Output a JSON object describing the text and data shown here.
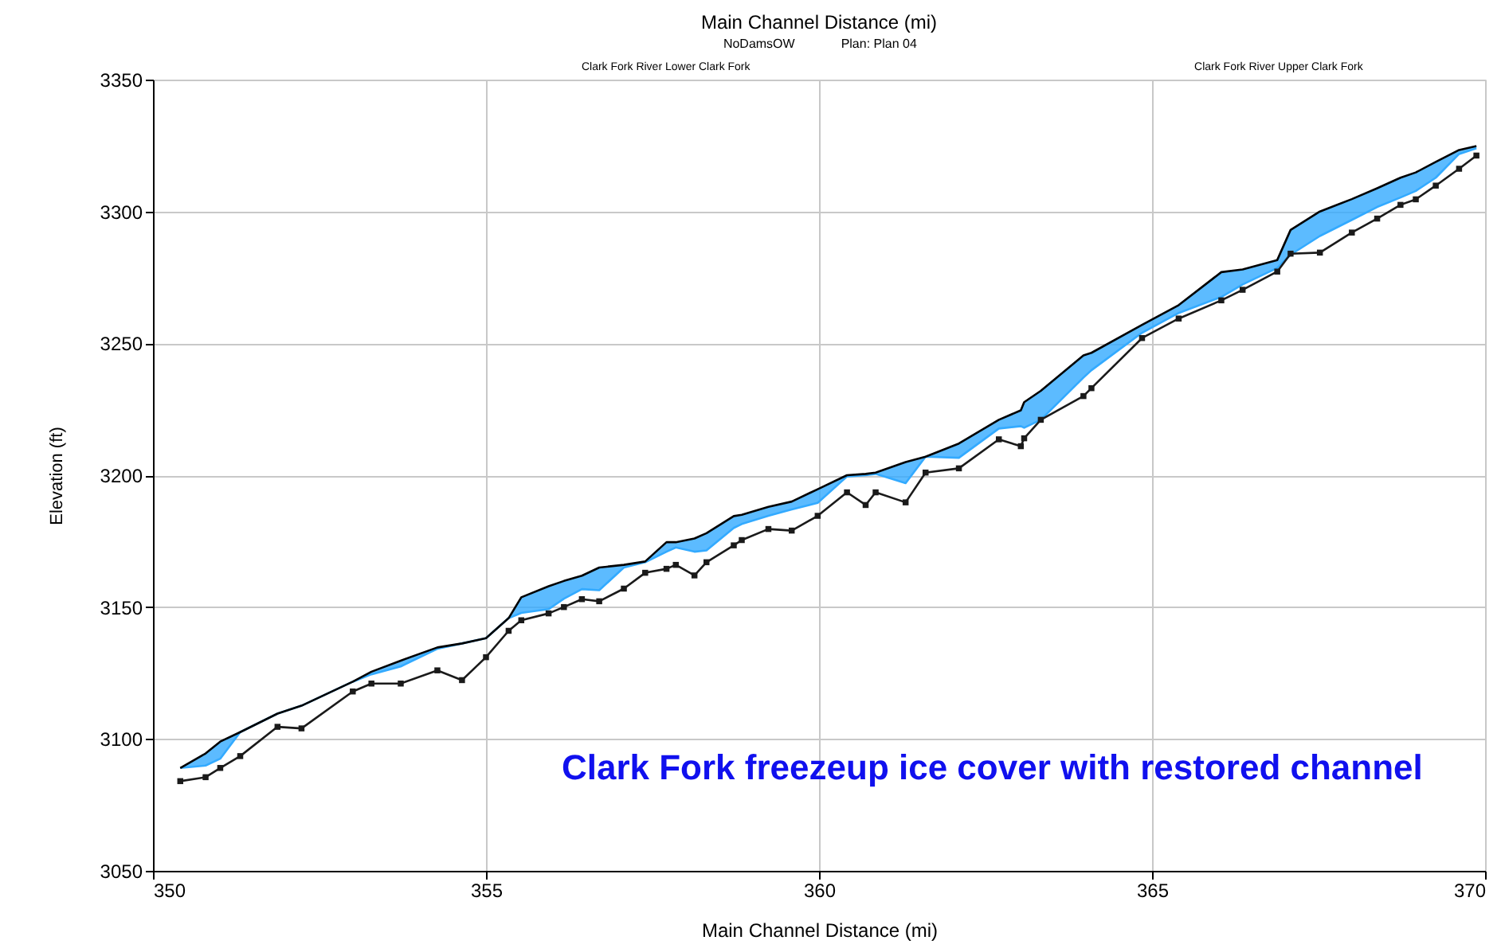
{
  "chart_data": {
    "type": "line",
    "title": "Main Channel Distance (mi)",
    "xlabel": "Main Channel Distance (mi)",
    "ylabel": "Elevation (ft)",
    "annotations": [
      "NoDamsOW",
      "Plan: Plan 04",
      "Clark Fork River Lower Clark Fork",
      "Clark Fork River Upper Clark Fork",
      "Clark Fork freezeup ice cover with restored channel"
    ],
    "x": [
      350.41,
      350.79,
      351.01,
      351.31,
      351.87,
      352.23,
      353.0,
      353.28,
      353.72,
      354.27,
      354.64,
      355.0,
      355.34,
      355.53,
      355.94,
      356.17,
      356.44,
      356.7,
      357.07,
      357.39,
      357.71,
      357.85,
      358.13,
      358.31,
      358.72,
      358.84,
      359.24,
      359.59,
      359.98,
      360.42,
      360.7,
      360.85,
      361.3,
      361.6,
      362.1,
      362.7,
      363.03,
      363.08,
      363.33,
      363.97,
      364.09,
      364.85,
      365.4,
      366.04,
      366.36,
      366.88,
      367.08,
      367.52,
      368.0,
      368.38,
      368.73,
      368.96,
      369.26,
      369.61,
      369.87
    ],
    "series": [
      {
        "color": "#33aaff",
        "values": [
          3089,
          3089.9,
          3092.5,
          3102.6,
          3109.6,
          3112.6,
          3121.7,
          3124.5,
          3127.5,
          3134.2,
          3136.2,
          3138.2,
          3145.8,
          3147.8,
          3149.2,
          3153.2,
          3156.8,
          3156.4,
          3165,
          3167,
          3171,
          3172.6,
          3171,
          3171.5,
          3180,
          3181.5,
          3184.6,
          3187,
          3189.5,
          3199.5,
          3200,
          3200.5,
          3197,
          3207,
          3206.6,
          3217.7,
          3218.6,
          3218,
          3221,
          3237,
          3239.8,
          3254,
          3261.5,
          3267.6,
          3272.3,
          3278.6,
          3283.6,
          3290.7,
          3296.8,
          3301.7,
          3305.3,
          3307.8,
          3312.8,
          3321.8,
          3324
        ],
        "lower": [
          3089,
          3089.9,
          3092.5,
          3102.6,
          3109.6,
          3112.6,
          3121.7,
          3124.5,
          3127.5,
          3134.2,
          3136.2,
          3138.2,
          3145.8,
          3147.8,
          3149.2,
          3153.2,
          3156.8,
          3156.4,
          3165,
          3167,
          3171,
          3172.6,
          3171,
          3171.5,
          3180,
          3181.5,
          3184.6,
          3187,
          3189.5,
          3199.5,
          3200,
          3200.5,
          3197,
          3207,
          3206.6,
          3217.7,
          3218.6,
          3218,
          3221,
          3237,
          3239.8,
          3254,
          3261.5,
          3267.6,
          3272.3,
          3278.6,
          3283.6,
          3290.7,
          3296.8,
          3301.7,
          3305.3,
          3307.8,
          3312.8,
          3321.8,
          3324
        ],
        "upper": [
          3089,
          3094.5,
          3099,
          3102.6,
          3109.6,
          3112.6,
          3121.7,
          3125.5,
          3129.7,
          3134.7,
          3136.2,
          3138.2,
          3145.8,
          3153.7,
          3157.9,
          3159.9,
          3161.9,
          3165,
          3166,
          3167.3,
          3174.6,
          3174.6,
          3176,
          3178,
          3184.5,
          3185,
          3188,
          3190,
          3194.7,
          3200,
          3200.5,
          3201,
          3205,
          3207,
          3212,
          3221,
          3224.6,
          3227.7,
          3232,
          3245.4,
          3246.4,
          3257,
          3264.5,
          3277,
          3278,
          3281.6,
          3293,
          3300,
          3304.7,
          3308.8,
          3312.8,
          3314.8,
          3318.8,
          3323.3,
          3324.8
        ]
      },
      {
        "type": "line",
        "color": "#000000",
        "values": [
          3089,
          3094.5,
          3099,
          3102.6,
          3109.6,
          3112.6,
          3121.7,
          3125.5,
          3129.7,
          3134.7,
          3136.2,
          3138.2,
          3145.8,
          3153.7,
          3157.9,
          3159.9,
          3161.9,
          3165,
          3166,
          3167.3,
          3174.6,
          3174.6,
          3176,
          3178,
          3184.5,
          3185,
          3188,
          3190,
          3194.7,
          3200,
          3200.5,
          3201,
          3205,
          3207,
          3212,
          3221,
          3224.6,
          3227.7,
          3232,
          3245.4,
          3246.4,
          3257,
          3264.5,
          3277,
          3278,
          3281.6,
          3293,
          3300,
          3304.7,
          3308.8,
          3312.8,
          3314.8,
          3318.8,
          3323.3,
          3324.8
        ]
      },
      {
        "type": "line",
        "color": "#1a1a1a",
        "marker": "square",
        "values": [
          3084,
          3085.5,
          3089,
          3093.5,
          3104.6,
          3104,
          3118,
          3121,
          3121,
          3126,
          3122.3,
          3131,
          3141,
          3145,
          3147.6,
          3150,
          3153,
          3152.2,
          3157,
          3163,
          3164.5,
          3166,
          3162,
          3167,
          3173.4,
          3175.4,
          3179.6,
          3179,
          3184.6,
          3193.5,
          3188.7,
          3193.5,
          3189.7,
          3201,
          3202.6,
          3213.6,
          3211,
          3214,
          3221,
          3230,
          3233,
          3252,
          3259.4,
          3266.3,
          3270.3,
          3277.2,
          3284,
          3284.4,
          3292,
          3297.3,
          3302.5,
          3304.6,
          3309.8,
          3316.2,
          3321.2
        ]
      }
    ],
    "xlim": [
      350,
      370
    ],
    "xticks": [
      350,
      355,
      360,
      365,
      370
    ],
    "ylim": [
      3050,
      3350
    ],
    "yticks": [
      3050,
      3100,
      3150,
      3200,
      3250,
      3300,
      3350
    ],
    "grid": true
  }
}
